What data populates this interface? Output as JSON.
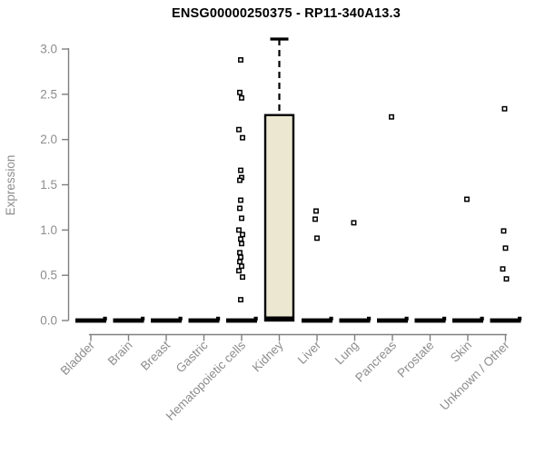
{
  "chart_data": {
    "type": "boxplot",
    "title": "ENSG00000250375 - RP11-340A13.3",
    "ylabel": "Expression",
    "ylim": [
      0.0,
      3.15
    ],
    "yticks": [
      0.0,
      0.5,
      1.0,
      1.5,
      2.0,
      2.5,
      3.0
    ],
    "grid": false,
    "legend": "none",
    "categories": [
      "Bladder",
      "Brain",
      "Breast",
      "Gastric",
      "Hematopoietic cells",
      "Kidney",
      "Liver",
      "Lung",
      "Pancreas",
      "Prostate",
      "Skin",
      "Unknown / Other"
    ],
    "boxes": [
      {
        "category": "Bladder",
        "q1": 0.0,
        "median": 0.0,
        "q3": 0.0,
        "whisker_low": 0.0,
        "whisker_high": 0.0
      },
      {
        "category": "Brain",
        "q1": 0.0,
        "median": 0.0,
        "q3": 0.0,
        "whisker_low": 0.0,
        "whisker_high": 0.0
      },
      {
        "category": "Breast",
        "q1": 0.0,
        "median": 0.0,
        "q3": 0.0,
        "whisker_low": 0.0,
        "whisker_high": 0.0
      },
      {
        "category": "Gastric",
        "q1": 0.0,
        "median": 0.0,
        "q3": 0.0,
        "whisker_low": 0.0,
        "whisker_high": 0.0
      },
      {
        "category": "Hematopoietic cells",
        "q1": 0.0,
        "median": 0.0,
        "q3": 0.0,
        "whisker_low": 0.0,
        "whisker_high": 0.0
      },
      {
        "category": "Kidney",
        "q1": 0.0,
        "median": 0.0,
        "q3": 2.27,
        "whisker_low": 0.0,
        "whisker_high": 3.11
      },
      {
        "category": "Liver",
        "q1": 0.0,
        "median": 0.0,
        "q3": 0.0,
        "whisker_low": 0.0,
        "whisker_high": 0.0
      },
      {
        "category": "Lung",
        "q1": 0.0,
        "median": 0.0,
        "q3": 0.0,
        "whisker_low": 0.0,
        "whisker_high": 0.0
      },
      {
        "category": "Pancreas",
        "q1": 0.0,
        "median": 0.0,
        "q3": 0.0,
        "whisker_low": 0.0,
        "whisker_high": 0.0
      },
      {
        "category": "Prostate",
        "q1": 0.0,
        "median": 0.0,
        "q3": 0.0,
        "whisker_low": 0.0,
        "whisker_high": 0.0
      },
      {
        "category": "Skin",
        "q1": 0.0,
        "median": 0.0,
        "q3": 0.0,
        "whisker_low": 0.0,
        "whisker_high": 0.0
      },
      {
        "category": "Unknown / Other",
        "q1": 0.0,
        "median": 0.0,
        "q3": 0.0,
        "whisker_low": 0.0,
        "whisker_high": 0.0
      }
    ],
    "points": {
      "Hematopoietic cells": [
        2.88,
        2.52,
        2.46,
        2.11,
        2.02,
        1.66,
        1.58,
        1.55,
        1.33,
        1.24,
        1.13,
        1.0,
        0.95,
        0.9,
        0.85,
        0.75,
        0.7,
        0.65,
        0.6,
        0.55,
        0.48,
        0.23
      ],
      "Liver": [
        1.21,
        1.12,
        0.91
      ],
      "Lung": [
        1.08
      ],
      "Pancreas": [
        2.25
      ],
      "Skin": [
        1.34
      ],
      "Unknown / Other": [
        2.34,
        0.99,
        0.8,
        0.57,
        0.46
      ]
    },
    "colors": {
      "background": "#ffffff",
      "box_fill": "#ece7d1",
      "box_border": "#000000",
      "median": "#000000",
      "point": "#000000",
      "axis": "#7f7f7f",
      "tick_label": "#8d8d8d",
      "title": "#000000"
    }
  }
}
